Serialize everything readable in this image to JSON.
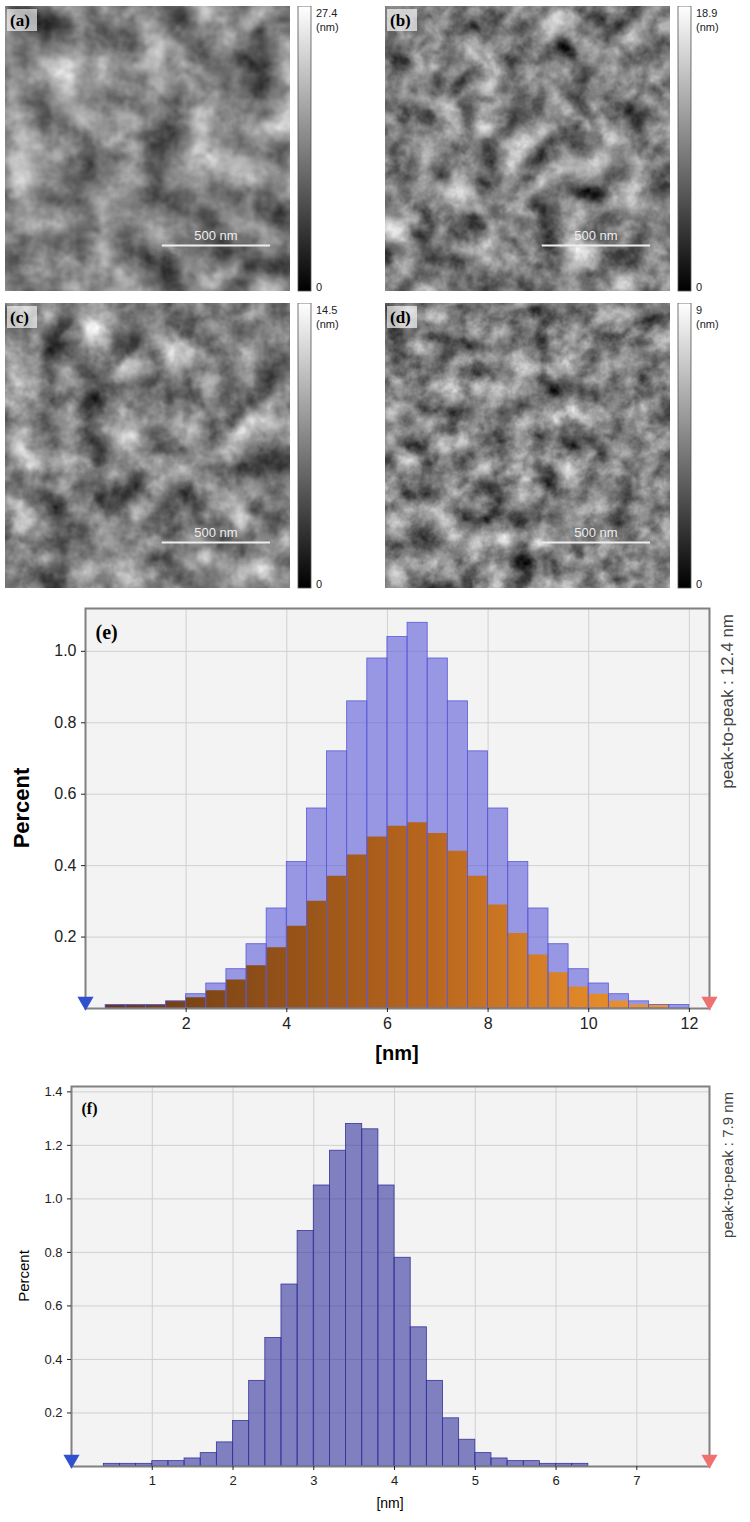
{
  "images": [
    {
      "label": "(a)",
      "scale_bar": "500 nm",
      "colorbar": {
        "range": [
          0,
          27.4
        ],
        "ticks": [
          0,
          27.4
        ],
        "unit": "(nm)"
      }
    },
    {
      "label": "(b)",
      "scale_bar": "500 nm",
      "colorbar": {
        "range": [
          0,
          18.9
        ],
        "ticks": [
          0,
          18.9
        ],
        "unit": "(nm)"
      }
    },
    {
      "label": "(c)",
      "scale_bar": "500 nm",
      "colorbar": {
        "range": [
          0,
          14.5
        ],
        "ticks": [
          0,
          14.5
        ],
        "unit": "(nm)"
      }
    },
    {
      "label": "(d)",
      "scale_bar": "500 nm",
      "colorbar": {
        "range": [
          0,
          9
        ],
        "ticks": [
          0,
          9
        ],
        "unit": "(nm)"
      }
    }
  ],
  "chart_data": [
    {
      "type": "histogram",
      "panel": "(e)",
      "x_label": "[nm]",
      "y_label": "Percent",
      "annotation": "peak-to-peak : 12.4 nm",
      "range_markers": [
        0,
        12.4
      ],
      "bins": [
        0,
        0.4,
        0.8,
        1.2,
        1.6,
        2,
        2.4,
        2.8,
        3.2,
        3.6,
        4,
        4.4,
        4.8,
        5.2,
        5.6,
        6,
        6.4,
        6.8,
        7.2,
        7.6,
        8,
        8.4,
        8.8,
        9.2,
        9.6,
        10,
        10.4,
        10.8,
        11.2,
        11.6,
        12,
        12.4
      ],
      "series": [
        {
          "type": "bar",
          "color": "#5a5ad8",
          "values": [
            0,
            0.01,
            0.01,
            0.01,
            0.02,
            0.04,
            0.07,
            0.11,
            0.18,
            0.28,
            0.41,
            0.56,
            0.72,
            0.86,
            0.98,
            1.04,
            1.08,
            0.98,
            0.86,
            0.72,
            0.56,
            0.41,
            0.28,
            0.18,
            0.11,
            0.07,
            0.04,
            0.02,
            0.01,
            0.01,
            0
          ]
        },
        {
          "type": "area",
          "color": "#b8661e",
          "values": [
            0,
            0.01,
            0.01,
            0.01,
            0.02,
            0.03,
            0.05,
            0.08,
            0.12,
            0.17,
            0.23,
            0.3,
            0.37,
            0.43,
            0.48,
            0.51,
            0.52,
            0.49,
            0.44,
            0.37,
            0.29,
            0.21,
            0.15,
            0.1,
            0.06,
            0.04,
            0.02,
            0.01,
            0.01,
            0,
            0
          ]
        }
      ],
      "xlim": [
        0,
        12.4
      ],
      "ylim": [
        0,
        1.12
      ],
      "xticks": [
        2,
        4,
        6,
        8,
        10,
        12
      ],
      "yticks": [
        0.2,
        0.4,
        0.6,
        0.8,
        {
          "value": 1,
          "label": "1.0"
        }
      ],
      "grid": true
    },
    {
      "type": "histogram",
      "panel": "(f)",
      "x_label": "[nm]",
      "y_label": "Percent",
      "annotation": "peak-to-peak : 7.9 nm",
      "range_markers": [
        0,
        7.9
      ],
      "bins": [
        0,
        0.2,
        0.4,
        0.6,
        0.8,
        1,
        1.2,
        1.4,
        1.6,
        1.8,
        2,
        2.2,
        2.4,
        2.6,
        2.8,
        3,
        3.2,
        3.4,
        3.6,
        3.8,
        4,
        4.2,
        4.4,
        4.6,
        4.8,
        5,
        5.2,
        5.4,
        5.6,
        5.8,
        6,
        6.2,
        6.4,
        6.6,
        6.8,
        7,
        7.2,
        7.4,
        7.6,
        7.8
      ],
      "series": [
        {
          "type": "bar",
          "color": "#33339e",
          "values": [
            0,
            0,
            0.01,
            0.01,
            0.01,
            0.02,
            0.02,
            0.03,
            0.05,
            0.09,
            0.17,
            0.32,
            0.48,
            0.68,
            0.88,
            1.05,
            1.18,
            1.28,
            1.26,
            1.05,
            0.78,
            0.52,
            0.32,
            0.18,
            0.1,
            0.05,
            0.03,
            0.02,
            0.02,
            0.01,
            0.01,
            0.01,
            0,
            0,
            0,
            0,
            0,
            0,
            0
          ]
        }
      ],
      "xlim": [
        0,
        7.9
      ],
      "ylim": [
        0,
        1.42
      ],
      "xticks": [
        1,
        2,
        3,
        4,
        5,
        6,
        7
      ],
      "yticks": [
        0.2,
        0.4,
        0.6,
        0.8,
        {
          "value": 1,
          "label": "1.0"
        },
        1.2,
        1.4
      ],
      "grid": true
    }
  ]
}
